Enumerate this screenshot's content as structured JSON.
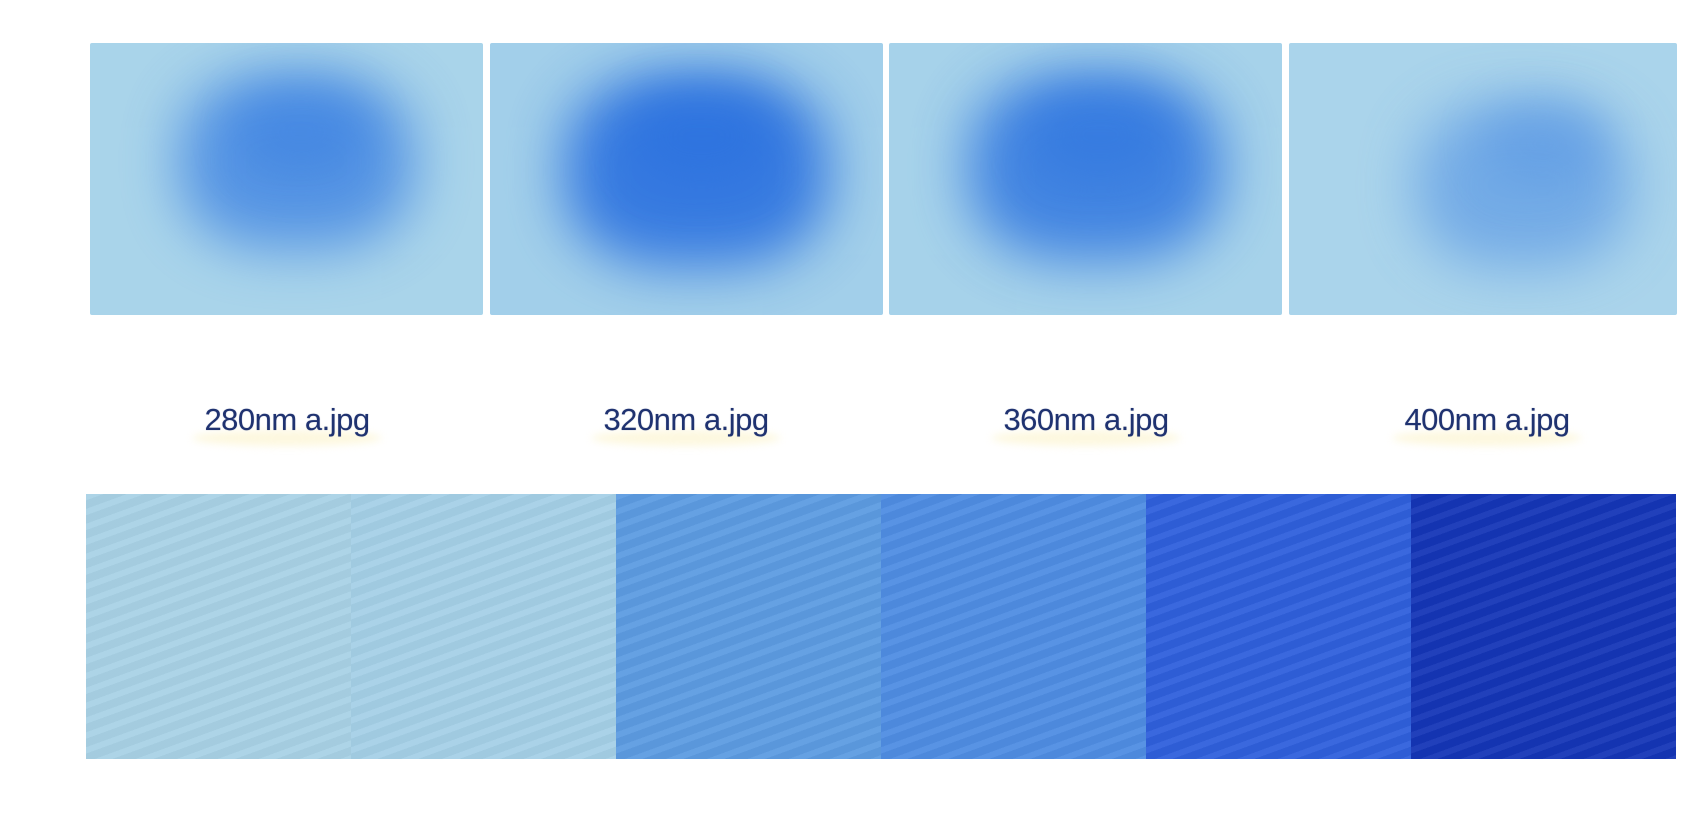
{
  "captions": [
    "280nm a.jpg",
    "320nm a.jpg",
    "360nm a.jpg",
    "400nm a.jpg"
  ],
  "photos": [
    {
      "bg": "#a9d4ea",
      "spot": "#3d82e2",
      "intensity": 0.6
    },
    {
      "bg": "#a2cfea",
      "spot": "#2c72df",
      "intensity": 0.9
    },
    {
      "bg": "#a6d2ea",
      "spot": "#3278e0",
      "intensity": 0.8
    },
    {
      "bg": "#aad4eb",
      "spot": "#5a98e4",
      "intensity": 0.4
    }
  ],
  "swatches": [
    "#a9d2e6",
    "#a5d0e7",
    "#5d9ce2",
    "#4f8de3",
    "#2f60dc",
    "#1536b7"
  ],
  "colors": {
    "background": "#ffffff",
    "caption_text": "#1f3270"
  }
}
